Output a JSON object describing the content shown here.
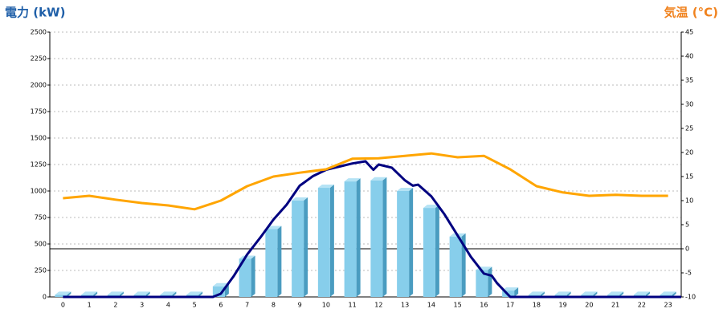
{
  "chart_data": {
    "type": "combo",
    "ylabel": "電力 (kW)",
    "y2label": "気温 (°C)",
    "categories": [
      "0",
      "1",
      "2",
      "3",
      "4",
      "5",
      "6",
      "7",
      "8",
      "9",
      "10",
      "11",
      "12",
      "13",
      "14",
      "15",
      "16",
      "17",
      "18",
      "19",
      "20",
      "21",
      "22",
      "23"
    ],
    "ylim": [
      0,
      2500
    ],
    "yticks": [
      0,
      250,
      500,
      750,
      1000,
      1250,
      1500,
      1750,
      2000,
      2250,
      2500
    ],
    "y2lim": [
      -10,
      45
    ],
    "y2ticks": [
      -10,
      -5,
      0,
      5,
      10,
      15,
      20,
      25,
      30,
      35,
      40,
      45
    ],
    "grid": true,
    "series": [
      {
        "type": "bar",
        "color": "#87ceeb",
        "values": [
          20,
          20,
          20,
          20,
          20,
          20,
          100,
          360,
          640,
          910,
          1030,
          1090,
          1100,
          1000,
          840,
          570,
          255,
          60,
          20,
          20,
          20,
          20,
          20,
          20
        ]
      },
      {
        "type": "line",
        "color": "#000080",
        "x": [
          0,
          1,
          2,
          3,
          4,
          5,
          5.7,
          6,
          6.5,
          7,
          7.5,
          8,
          8.5,
          9,
          9.5,
          10,
          10.5,
          11,
          11.5,
          11.8,
          12,
          12.5,
          13,
          13.3,
          13.5,
          14,
          14.5,
          15,
          15.5,
          16,
          16.3,
          16.5,
          17,
          18,
          19,
          20,
          21,
          22,
          23,
          23.5
        ],
        "values": [
          0,
          0,
          0,
          0,
          0,
          0,
          0,
          30,
          200,
          400,
          560,
          730,
          870,
          1050,
          1140,
          1200,
          1230,
          1260,
          1280,
          1200,
          1250,
          1220,
          1100,
          1050,
          1060,
          950,
          780,
          580,
          380,
          220,
          200,
          130,
          0,
          0,
          0,
          0,
          0,
          0,
          0,
          0
        ]
      },
      {
        "type": "line",
        "axis": "y2",
        "color": "#ffa500",
        "values": [
          10.5,
          11,
          10.2,
          9.5,
          9,
          8.2,
          10,
          13,
          15,
          15.8,
          16.5,
          18.7,
          18.8,
          19.3,
          19.8,
          19,
          19.3,
          16.5,
          13,
          11.7,
          11,
          11.2,
          11,
          11
        ]
      }
    ]
  }
}
